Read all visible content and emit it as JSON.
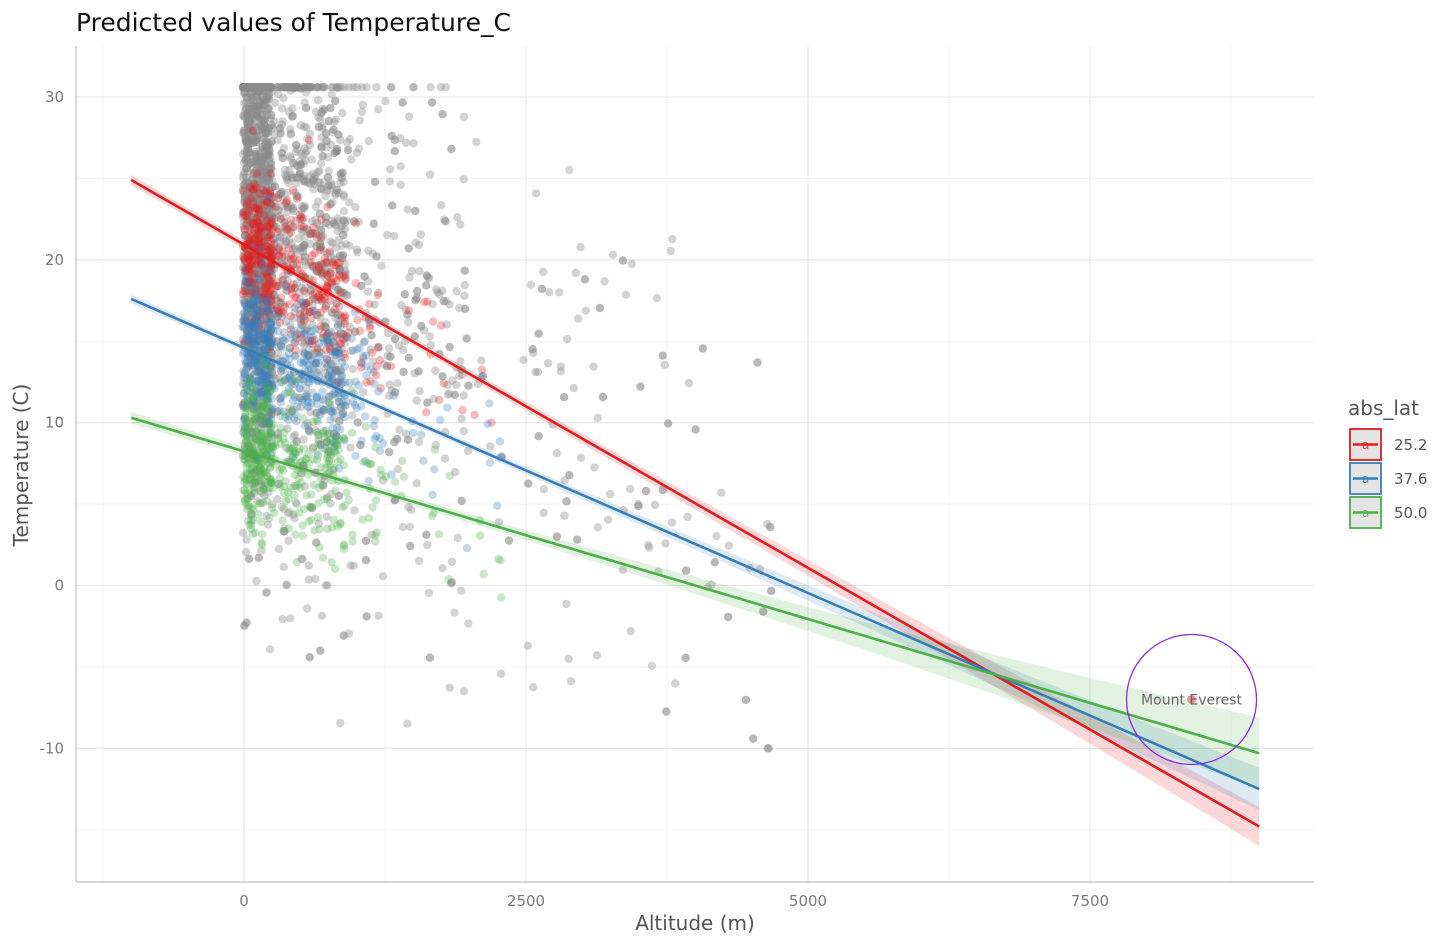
{
  "chart_data": {
    "type": "scatter",
    "title": "Predicted values of Temperature_C",
    "xlabel": "Altitude (m)",
    "ylabel": "Temperature (C)",
    "xlim": [
      -1500,
      9500
    ],
    "ylim": [
      -18,
      33
    ],
    "x_ticks": [
      0,
      2500,
      5000,
      7500
    ],
    "x_tick_labels": [
      "0",
      "2500",
      "5000",
      "7500"
    ],
    "y_ticks": [
      -10,
      0,
      10,
      20,
      30
    ],
    "y_tick_labels": [
      "-10",
      "0",
      "10",
      "20",
      "30"
    ],
    "grid": true,
    "legend": {
      "title": "abs_lat",
      "placement": "right",
      "glyph_letter": "a",
      "entries": [
        "25.2",
        "37.6",
        "50.0"
      ]
    },
    "series": [
      {
        "name": "25.2",
        "color": "#e41a1c",
        "line": {
          "x": [
            -1000,
            9000
          ],
          "y": [
            24.9,
            -14.8
          ]
        },
        "ci_low_end": -16.0,
        "ci_high_end": -13.6,
        "ci_min_width": 0.5
      },
      {
        "name": "37.6",
        "color": "#377eb8",
        "line": {
          "x": [
            -1000,
            9000
          ],
          "y": [
            17.6,
            -12.5
          ]
        },
        "ci_low_end": -13.8,
        "ci_high_end": -11.2,
        "ci_min_width": 0.4
      },
      {
        "name": "50.0",
        "color": "#4daf4a",
        "line": {
          "x": [
            -1000,
            9000
          ],
          "y": [
            10.3,
            -10.3
          ]
        },
        "ci_low_end": -12.5,
        "ci_high_end": -8.1,
        "ci_min_width": 0.5
      }
    ],
    "scatter_groups": [
      {
        "name": "raw",
        "color": "#8c8c8c",
        "count": 2600
      },
      {
        "name": "25.2",
        "color": "#e41a1c",
        "count": 420
      },
      {
        "name": "37.6",
        "color": "#377eb8",
        "count": 520
      },
      {
        "name": "50.0",
        "color": "#4daf4a",
        "count": 420
      }
    ],
    "annotation": {
      "text": "Mount Everest",
      "x": 8400,
      "y": -7.0,
      "circle_color": "#8a2be2",
      "point_color": "#e88a8a"
    }
  }
}
